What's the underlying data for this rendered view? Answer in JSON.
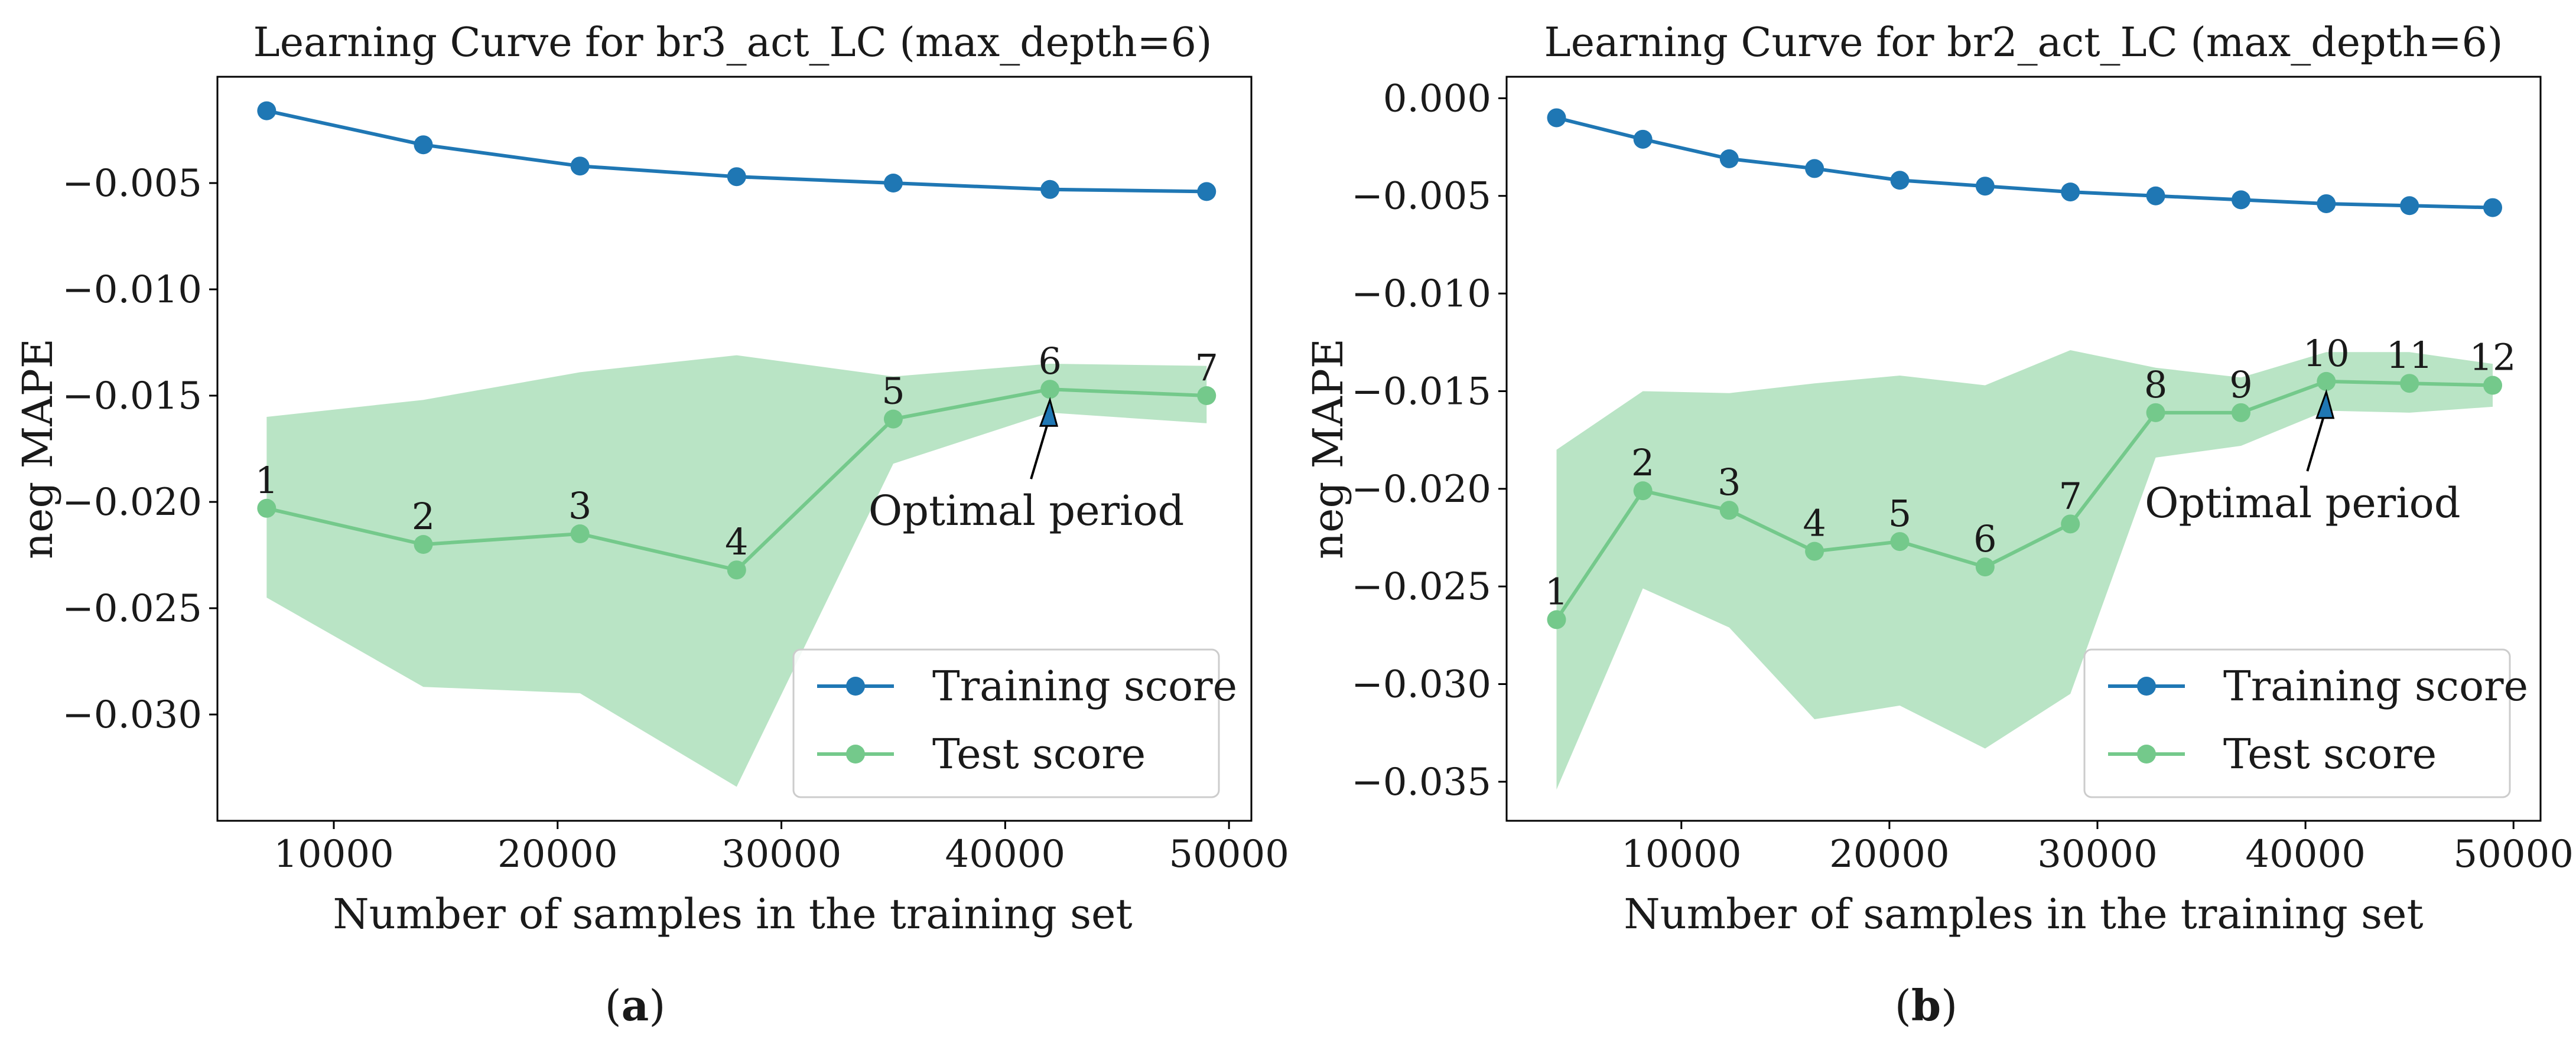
{
  "chart_data": [
    {
      "type": "line",
      "title": "Learning Curve for br3_act_LC (max_depth=6)",
      "xlabel": "Number of samples in the training set",
      "ylabel": "neg MAPE",
      "xlim": [
        4800,
        51000
      ],
      "ylim": [
        -0.035,
        -0.0
      ],
      "xticks": [
        10000,
        20000,
        30000,
        40000,
        50000
      ],
      "xtick_labels": [
        "10000",
        "20000",
        "30000",
        "40000",
        "50000"
      ],
      "yticks": [
        -0.005,
        -0.01,
        -0.015,
        -0.02,
        -0.025,
        -0.03
      ],
      "ytick_labels": [
        "−0.005",
        "−0.010",
        "−0.015",
        "−0.020",
        "−0.025",
        "−0.030"
      ],
      "x": [
        7000,
        14000,
        21000,
        28000,
        35000,
        42000,
        49000
      ],
      "series": [
        {
          "name": "Training score",
          "color": "#1f77b4",
          "values": [
            -0.0016,
            -0.0032,
            -0.0042,
            -0.0047,
            -0.005,
            -0.0053,
            -0.0054
          ]
        },
        {
          "name": "Test score",
          "color": "#74c98b",
          "values": [
            -0.0203,
            -0.022,
            -0.0215,
            -0.0232,
            -0.0161,
            -0.0147,
            -0.015
          ],
          "band_upper": [
            -0.016,
            -0.0152,
            -0.0139,
            -0.0131,
            -0.0141,
            -0.0135,
            -0.0136
          ],
          "band_lower": [
            -0.0245,
            -0.0287,
            -0.029,
            -0.0334,
            -0.0182,
            -0.0158,
            -0.0163
          ],
          "point_labels": [
            "1",
            "2",
            "3",
            "4",
            "5",
            "6",
            "7"
          ]
        }
      ],
      "legend": {
        "position": "bottom-right",
        "entries": [
          "Training score",
          "Test score"
        ]
      },
      "annotation": {
        "text": "Optimal period",
        "target_index": 5
      },
      "caption": "a"
    },
    {
      "type": "line",
      "title": "Learning Curve for br2_act_LC (max_depth=6)",
      "xlabel": "Number of samples in the training set",
      "ylabel": "neg MAPE",
      "xlim": [
        1600,
        51300
      ],
      "ylim": [
        -0.037,
        0.0011
      ],
      "xticks": [
        10000,
        20000,
        30000,
        40000,
        50000
      ],
      "xtick_labels": [
        "10000",
        "20000",
        "30000",
        "40000",
        "50000"
      ],
      "yticks": [
        0.0,
        -0.005,
        -0.01,
        -0.015,
        -0.02,
        -0.025,
        -0.03,
        -0.035
      ],
      "ytick_labels": [
        "0.000",
        "−0.005",
        "−0.010",
        "−0.015",
        "−0.020",
        "−0.025",
        "−0.030",
        "−0.035"
      ],
      "x": [
        4000,
        8150,
        12300,
        16400,
        20500,
        24600,
        28700,
        32800,
        36900,
        41000,
        45000,
        49000
      ],
      "series": [
        {
          "name": "Training score",
          "color": "#1f77b4",
          "values": [
            -0.001,
            -0.0021,
            -0.0031,
            -0.0036,
            -0.0042,
            -0.0045,
            -0.0048,
            -0.005,
            -0.0052,
            -0.0054,
            -0.0055,
            -0.0056
          ]
        },
        {
          "name": "Test score",
          "color": "#74c98b",
          "values": [
            -0.0267,
            -0.0201,
            -0.0211,
            -0.0232,
            -0.0227,
            -0.024,
            -0.0218,
            -0.0161,
            -0.0161,
            -0.0145,
            -0.0146,
            -0.0147
          ],
          "band_upper": [
            -0.018,
            -0.015,
            -0.0151,
            -0.0146,
            -0.0142,
            -0.0147,
            -0.0129,
            -0.0138,
            -0.0143,
            -0.013,
            -0.013,
            -0.0136
          ],
          "band_lower": [
            -0.0354,
            -0.0251,
            -0.0271,
            -0.0318,
            -0.0311,
            -0.0333,
            -0.0305,
            -0.0184,
            -0.0178,
            -0.016,
            -0.0161,
            -0.0158
          ],
          "point_labels": [
            "1",
            "2",
            "3",
            "4",
            "5",
            "6",
            "7",
            "8",
            "9",
            "10",
            "11",
            "12"
          ]
        }
      ],
      "legend": {
        "position": "bottom-right",
        "entries": [
          "Training score",
          "Test score"
        ]
      },
      "annotation": {
        "text": "Optimal period",
        "target_index": 9
      },
      "caption": "b"
    }
  ]
}
